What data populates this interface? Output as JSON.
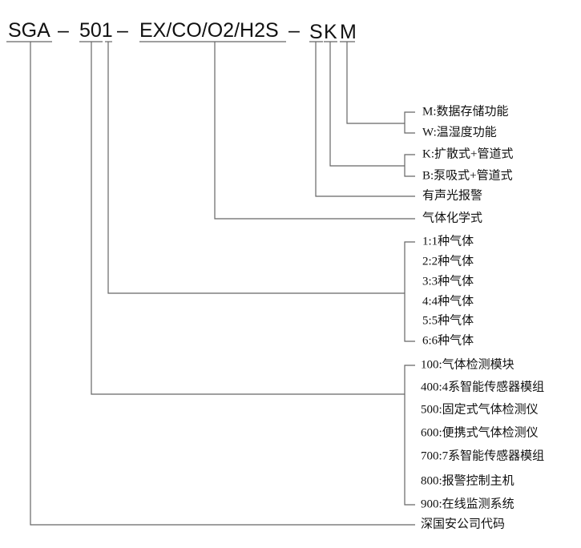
{
  "code": {
    "segments": [
      "SGA",
      "501",
      "EX/CO/O2/H2S",
      "S",
      "K",
      "M"
    ],
    "separator": "–"
  },
  "labels": {
    "m": "M:数据存储功能",
    "w": "W:温湿度功能",
    "k": "K:扩散式+管道式",
    "b": "B:泵吸式+管道式",
    "s": "有声光报警",
    "gas_formula": "气体化学式",
    "gas_count": [
      "1:1种气体",
      "2:2种气体",
      "3:3种气体",
      "4:4种气体",
      "5:5种气体",
      "6:6种气体"
    ],
    "series": [
      "100:气体检测模块",
      "400:4系智能传感器模组",
      "500:固定式气体检测仪",
      "600:便携式气体检测仪",
      "700:7系智能传感器模组",
      "800:报警控制主机",
      "900:在线监测系统"
    ],
    "company": "深国安公司代码"
  },
  "colors": {
    "line": "#666666",
    "text": "#111111"
  }
}
